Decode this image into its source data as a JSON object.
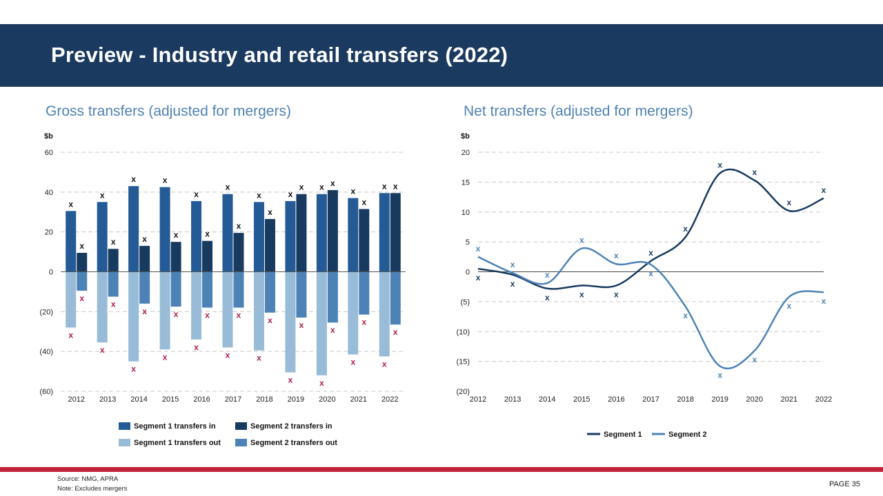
{
  "title": "Preview - Industry and retail transfers (2022)",
  "footer": {
    "source": "Source: NMG,  APRA",
    "note": "Note: Excludes mergers",
    "page": "PAGE  35"
  },
  "colors": {
    "header_bg": "#1b3a5f",
    "footer_bar": "#c3203a",
    "title_text": "#4f81b3",
    "seg1_in": "#245a95",
    "seg2_in": "#173a5e",
    "seg1_out": "#98bcd8",
    "seg2_out": "#4c82b6",
    "x_dark": "#111111",
    "x_red": "#b01c45"
  },
  "chart_data": [
    {
      "type": "bar",
      "title": "Gross transfers (adjusted for mergers)",
      "ylabel": "$b",
      "ylim": [
        -60,
        60
      ],
      "yticks": [
        60,
        40,
        20,
        0,
        -20,
        -40,
        -60
      ],
      "ytick_labels": [
        "60",
        "40",
        "20",
        "0",
        "(20)",
        "(40)",
        "(60)"
      ],
      "grid": true,
      "legend_position": "bottom",
      "categories": [
        "2012",
        "2013",
        "2014",
        "2015",
        "2016",
        "2017",
        "2018",
        "2019",
        "2020",
        "2021",
        "2022"
      ],
      "series": [
        {
          "name": "Segment 1 transfers in",
          "values": [
            30.5,
            35,
            43,
            42.5,
            35.5,
            39,
            35,
            35.5,
            39,
            37,
            39.5
          ]
        },
        {
          "name": "Segment 2 transfers in",
          "values": [
            9.5,
            11.5,
            13,
            15,
            15.5,
            19.5,
            26.5,
            39,
            41,
            31.5,
            39.5
          ]
        },
        {
          "name": "Segment 1 transfers out",
          "values": [
            -28,
            -35.5,
            -45,
            -39,
            -34,
            -38,
            -39.5,
            -50.5,
            -52,
            -41.5,
            -42.5
          ]
        },
        {
          "name": "Segment 2 transfers out",
          "values": [
            -9.5,
            -12.5,
            -16,
            -17.5,
            -18,
            -18,
            -20.5,
            -23,
            -25.5,
            -21.5,
            -26.5
          ]
        }
      ],
      "marker_label": "x"
    },
    {
      "type": "line",
      "title": "Net transfers (adjusted for mergers)",
      "ylabel": "$b",
      "ylim": [
        -20,
        20
      ],
      "yticks": [
        20,
        15,
        10,
        5,
        0,
        -5,
        -10,
        -15,
        -20
      ],
      "ytick_labels": [
        "20",
        "15",
        "10",
        "5",
        "0",
        "(5)",
        "(10)",
        "(15)",
        "(20)"
      ],
      "grid": true,
      "legend_position": "bottom",
      "x": [
        "2012",
        "2013",
        "2014",
        "2015",
        "2016",
        "2017",
        "2018",
        "2019",
        "2020",
        "2021",
        "2022"
      ],
      "series": [
        {
          "name": "Segment 1",
          "values": [
            0.5,
            -0.5,
            -2.8,
            -2.3,
            -2.3,
            1.8,
            5.8,
            16.5,
            15.3,
            10.2,
            12.3
          ]
        },
        {
          "name": "Segment 2",
          "values": [
            2.5,
            -0.2,
            -1.9,
            3.9,
            1.3,
            1.2,
            -5.8,
            -15.8,
            -13.2,
            -4.2,
            -3.4
          ]
        }
      ],
      "marker_label": "x"
    }
  ]
}
